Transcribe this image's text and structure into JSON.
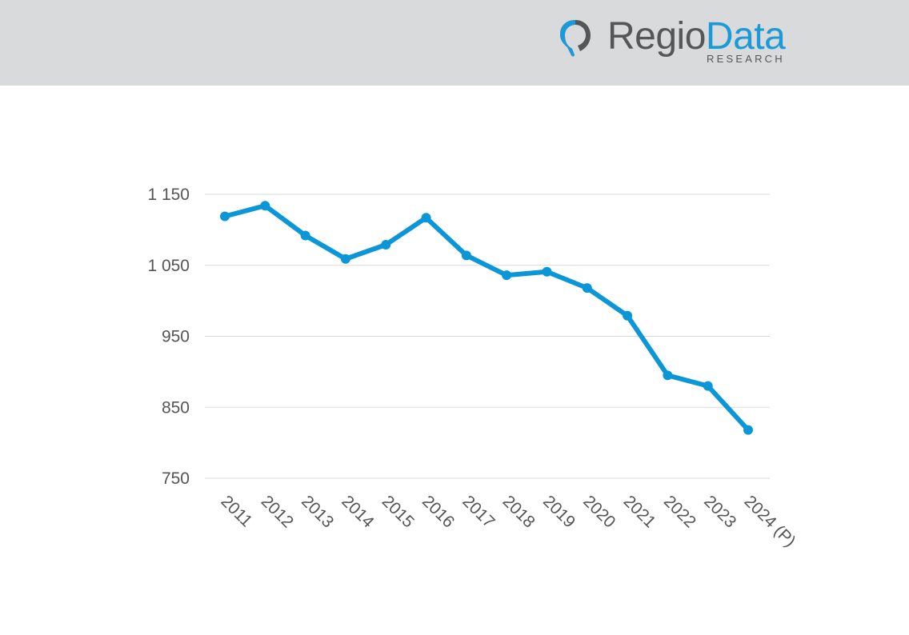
{
  "brand": {
    "name_part1": "Regio",
    "name_part2": "Data",
    "subtitle": "RESEARCH",
    "color_dark": "#555658",
    "color_accent": "#1a9ad6"
  },
  "header_background": "#d9dadb",
  "chart_data": {
    "type": "line",
    "title": "",
    "xlabel": "",
    "ylabel": "",
    "categories": [
      "2011",
      "2012",
      "2013",
      "2014",
      "2015",
      "2016",
      "2017",
      "2018",
      "2019",
      "2020",
      "2021",
      "2022",
      "2023",
      "2024 (P)"
    ],
    "series": [
      {
        "values": [
          1119,
          1134,
          1092,
          1059,
          1079,
          1117,
          1064,
          1036,
          1041,
          1018,
          979,
          895,
          880,
          818
        ],
        "color": "#0b96d7"
      }
    ],
    "ylim": [
      750,
      1150
    ],
    "y_ticks": [
      750,
      850,
      950,
      1050,
      1150
    ],
    "y_tick_labels": [
      "750",
      "850",
      "950",
      "1 050",
      "1 150"
    ],
    "grid": true,
    "legend": "none"
  }
}
